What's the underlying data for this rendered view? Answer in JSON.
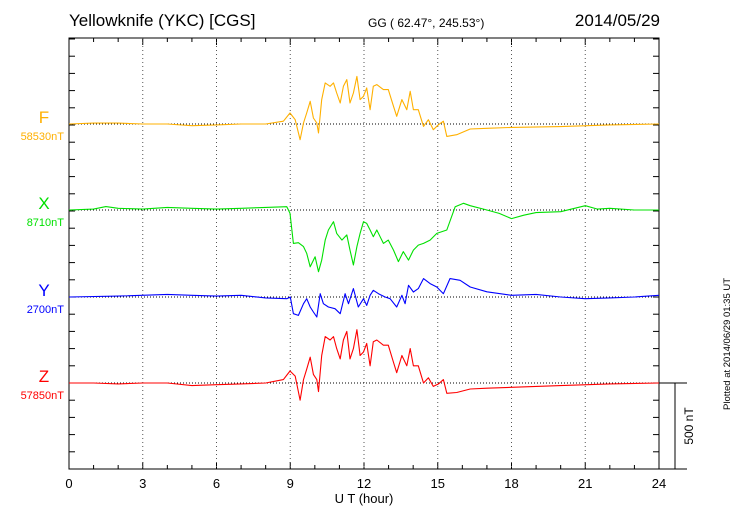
{
  "header": {
    "title": "Yellowknife (YKC)  [CGS]",
    "coords": "GG ( 62.47°, 245.53°)",
    "date": "2014/05/29"
  },
  "footer": {
    "plotted": "Plotted at 2014/06/29 01:35 UT"
  },
  "chart_data": {
    "type": "line",
    "title": "Yellowknife (YKC)  [CGS]",
    "xlabel": "U T (hour)",
    "xlim": [
      0,
      24
    ],
    "xticks": [
      "0",
      "3",
      "6",
      "9",
      "12",
      "15",
      "18",
      "21",
      "24"
    ],
    "grid": "dotted vertical every 3 h, dotted baseline per component",
    "scale_bar": {
      "label": "500 nT",
      "value_nT": 500
    },
    "y_minor_tick_nT": 100,
    "note": "series values are nT offsets from each component's baseline",
    "series": [
      {
        "name": "F",
        "baseline_label": "58530nT",
        "baseline_nT": 58530,
        "color": "#ffb000",
        "points": [
          [
            0,
            0
          ],
          [
            1,
            5
          ],
          [
            2,
            5
          ],
          [
            3,
            0
          ],
          [
            4,
            0
          ],
          [
            5,
            -10
          ],
          [
            6,
            -5
          ],
          [
            7,
            0
          ],
          [
            8,
            0
          ],
          [
            8.72,
            16
          ],
          [
            8.99,
            64
          ],
          [
            9.2,
            25
          ],
          [
            9.4,
            -91
          ],
          [
            9.54,
            6
          ],
          [
            9.67,
            64
          ],
          [
            9.81,
            132
          ],
          [
            9.94,
            35
          ],
          [
            10.08,
            6
          ],
          [
            10.15,
            -52
          ],
          [
            10.28,
            142
          ],
          [
            10.42,
            239
          ],
          [
            10.62,
            219
          ],
          [
            10.76,
            239
          ],
          [
            10.89,
            180
          ],
          [
            11.03,
            122
          ],
          [
            11.16,
            219
          ],
          [
            11.3,
            258
          ],
          [
            11.43,
            122
          ],
          [
            11.57,
            180
          ],
          [
            11.71,
            277
          ],
          [
            11.84,
            142
          ],
          [
            11.98,
            161
          ],
          [
            12.11,
            210
          ],
          [
            12.25,
            83
          ],
          [
            12.38,
            219
          ],
          [
            12.52,
            229
          ],
          [
            12.79,
            200
          ],
          [
            12.99,
            200
          ],
          [
            13.2,
            103
          ],
          [
            13.33,
            45
          ],
          [
            13.54,
            142
          ],
          [
            13.74,
            83
          ],
          [
            13.88,
            190
          ],
          [
            14.01,
            83
          ],
          [
            14.21,
            83
          ],
          [
            14.42,
            -14
          ],
          [
            14.62,
            25
          ],
          [
            14.82,
            -33
          ],
          [
            15.03,
            -4
          ],
          [
            15.23,
            16
          ],
          [
            15.37,
            -72
          ],
          [
            15.77,
            -62
          ],
          [
            16.32,
            -29
          ],
          [
            17,
            -25
          ],
          [
            18,
            -20
          ],
          [
            20,
            -15
          ],
          [
            22,
            -5
          ],
          [
            24,
            0
          ]
        ]
      },
      {
        "name": "X",
        "baseline_label": "8710nT",
        "baseline_nT": 8710,
        "color": "#00e000",
        "points": [
          [
            0,
            0
          ],
          [
            1,
            5
          ],
          [
            1.5,
            20
          ],
          [
            2,
            10
          ],
          [
            3,
            5
          ],
          [
            4,
            15
          ],
          [
            5,
            10
          ],
          [
            6,
            5
          ],
          [
            7,
            10
          ],
          [
            8,
            15
          ],
          [
            8.86,
            19
          ],
          [
            8.99,
            -19
          ],
          [
            9.13,
            -194
          ],
          [
            9.33,
            -190
          ],
          [
            9.54,
            -213
          ],
          [
            9.67,
            -252
          ],
          [
            9.81,
            -330
          ],
          [
            10.01,
            -272
          ],
          [
            10.15,
            -359
          ],
          [
            10.28,
            -291
          ],
          [
            10.42,
            -175
          ],
          [
            10.55,
            -116
          ],
          [
            10.76,
            -68
          ],
          [
            10.89,
            -136
          ],
          [
            11.1,
            -175
          ],
          [
            11.3,
            -145
          ],
          [
            11.43,
            -233
          ],
          [
            11.57,
            -320
          ],
          [
            11.71,
            -213
          ],
          [
            11.84,
            -136
          ],
          [
            11.98,
            -68
          ],
          [
            12.11,
            -78
          ],
          [
            12.25,
            -116
          ],
          [
            12.38,
            -155
          ],
          [
            12.52,
            -116
          ],
          [
            12.79,
            -194
          ],
          [
            12.99,
            -175
          ],
          [
            13.2,
            -233
          ],
          [
            13.4,
            -300
          ],
          [
            13.6,
            -242
          ],
          [
            13.81,
            -291
          ],
          [
            14.01,
            -233
          ],
          [
            14.21,
            -204
          ],
          [
            14.42,
            -194
          ],
          [
            14.69,
            -175
          ],
          [
            14.96,
            -136
          ],
          [
            15.37,
            -116
          ],
          [
            15.71,
            19
          ],
          [
            16.05,
            39
          ],
          [
            16.32,
            25
          ],
          [
            17,
            0
          ],
          [
            17.5,
            -20
          ],
          [
            18,
            -50
          ],
          [
            18.5,
            -30
          ],
          [
            19,
            -15
          ],
          [
            20,
            -10
          ],
          [
            21,
            25
          ],
          [
            21.5,
            5
          ],
          [
            22,
            10
          ],
          [
            23,
            0
          ],
          [
            24,
            0
          ]
        ]
      },
      {
        "name": "Y",
        "baseline_label": "2700nT",
        "baseline_nT": 2700,
        "color": "#0000ff",
        "points": [
          [
            0,
            0
          ],
          [
            2,
            5
          ],
          [
            4,
            15
          ],
          [
            5,
            10
          ],
          [
            6,
            5
          ],
          [
            7,
            10
          ],
          [
            8,
            -5
          ],
          [
            8.86,
            -10
          ],
          [
            9.0,
            0
          ],
          [
            9.13,
            -97
          ],
          [
            9.33,
            -107
          ],
          [
            9.54,
            -39
          ],
          [
            9.67,
            -10
          ],
          [
            9.81,
            -58
          ],
          [
            9.94,
            -87
          ],
          [
            10.08,
            -116
          ],
          [
            10.22,
            19
          ],
          [
            10.35,
            -39
          ],
          [
            10.55,
            -58
          ],
          [
            10.82,
            -68
          ],
          [
            11.03,
            -97
          ],
          [
            11.23,
            19
          ],
          [
            11.37,
            -39
          ],
          [
            11.57,
            49
          ],
          [
            11.77,
            -58
          ],
          [
            11.98,
            -10
          ],
          [
            12.11,
            -49
          ],
          [
            12.25,
            10
          ],
          [
            12.38,
            39
          ],
          [
            12.59,
            19
          ],
          [
            12.86,
            0
          ],
          [
            13.06,
            -10
          ],
          [
            13.33,
            -58
          ],
          [
            13.54,
            10
          ],
          [
            13.67,
            -39
          ],
          [
            13.81,
            68
          ],
          [
            14.01,
            29
          ],
          [
            14.21,
            49
          ],
          [
            14.42,
            107
          ],
          [
            14.69,
            78
          ],
          [
            14.96,
            58
          ],
          [
            15.23,
            19
          ],
          [
            15.5,
            107
          ],
          [
            15.91,
            97
          ],
          [
            16.32,
            58
          ],
          [
            17,
            30
          ],
          [
            18,
            10
          ],
          [
            19,
            15
          ],
          [
            20,
            0
          ],
          [
            21,
            -10
          ],
          [
            22,
            -5
          ],
          [
            23,
            0
          ],
          [
            24,
            10
          ]
        ]
      },
      {
        "name": "Z",
        "baseline_label": "57850nT",
        "baseline_nT": 57850,
        "color": "#ff0000",
        "points": [
          [
            0,
            0
          ],
          [
            1,
            0
          ],
          [
            2,
            -5
          ],
          [
            3,
            0
          ],
          [
            4,
            0
          ],
          [
            5,
            -15
          ],
          [
            6,
            -10
          ],
          [
            7,
            -5
          ],
          [
            8,
            0
          ],
          [
            8.72,
            20
          ],
          [
            8.99,
            70
          ],
          [
            9.2,
            40
          ],
          [
            9.4,
            -100
          ],
          [
            9.54,
            20
          ],
          [
            9.67,
            80
          ],
          [
            9.81,
            150
          ],
          [
            9.94,
            50
          ],
          [
            10.08,
            20
          ],
          [
            10.15,
            -50
          ],
          [
            10.28,
            160
          ],
          [
            10.42,
            270
          ],
          [
            10.62,
            250
          ],
          [
            10.76,
            270
          ],
          [
            10.89,
            200
          ],
          [
            11.03,
            140
          ],
          [
            11.16,
            250
          ],
          [
            11.3,
            300
          ],
          [
            11.43,
            140
          ],
          [
            11.57,
            200
          ],
          [
            11.71,
            310
          ],
          [
            11.84,
            160
          ],
          [
            11.98,
            180
          ],
          [
            12.11,
            230
          ],
          [
            12.25,
            100
          ],
          [
            12.38,
            240
          ],
          [
            12.52,
            250
          ],
          [
            12.79,
            220
          ],
          [
            12.99,
            220
          ],
          [
            13.2,
            120
          ],
          [
            13.33,
            60
          ],
          [
            13.54,
            160
          ],
          [
            13.74,
            100
          ],
          [
            13.88,
            200
          ],
          [
            14.01,
            100
          ],
          [
            14.21,
            100
          ],
          [
            14.42,
            0
          ],
          [
            14.62,
            30
          ],
          [
            14.82,
            -20
          ],
          [
            15.03,
            -5
          ],
          [
            15.23,
            20
          ],
          [
            15.37,
            -60
          ],
          [
            15.77,
            -55
          ],
          [
            16.32,
            -35
          ],
          [
            17,
            -30
          ],
          [
            18,
            -25
          ],
          [
            20,
            -15
          ],
          [
            22,
            -5
          ],
          [
            24,
            0
          ]
        ]
      }
    ]
  }
}
